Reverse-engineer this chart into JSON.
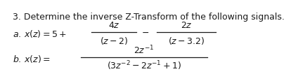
{
  "title": "3. Determine the inverse Z-Transform of the following signals.",
  "bg_color": "#ffffff",
  "text_color": "#1a1a1a",
  "title_fs": 9.0,
  "body_fs": 9.0,
  "line_color": "#1a1a1a"
}
